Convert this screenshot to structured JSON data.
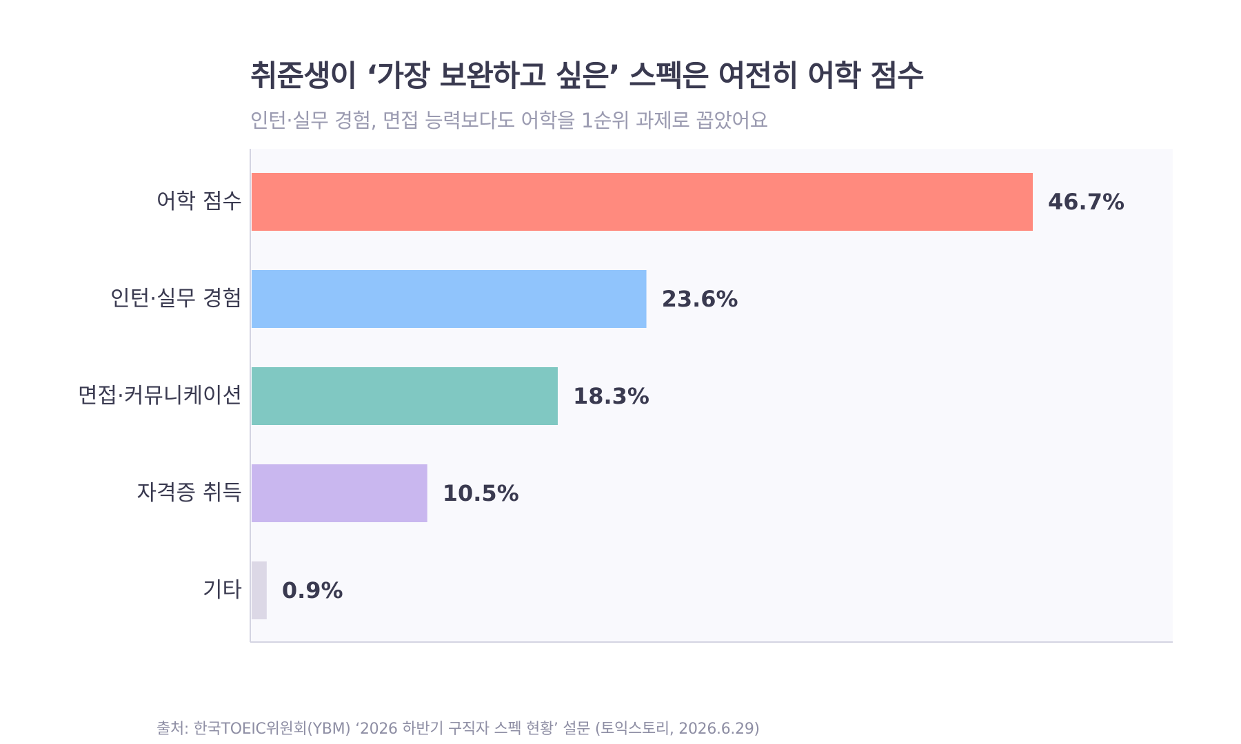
{
  "title": "취준생이 ‘가장 보완하고 싶은’ 스펙은 여전히 어학 점수",
  "subtitle": "인턴·실무 경험, 면접 능력보다도 어학을 1순위 과제로 꼽았어요",
  "source": "출처: 한국TOEIC위원회(YBM) ‘2026 하반기 구직자 스펙 현황’ 설문 (토익스토리, 2026.6.29)",
  "colors": {
    "plot_background": "#f9f9fd",
    "axis": "#d4d4e2",
    "label_text": "#3a3a50",
    "value_text": "#3a3a50"
  },
  "chart_data": {
    "type": "bar",
    "orientation": "horizontal",
    "categories": [
      "어학 점수",
      "인턴·실무 경험",
      "면접·커뮤니케이션",
      "자격증 취득",
      "기타"
    ],
    "values": [
      46.7,
      23.6,
      18.3,
      10.5,
      0.9
    ],
    "value_labels": [
      "46.7%",
      "23.6%",
      "18.3%",
      "10.5%",
      "0.9%"
    ],
    "bar_colors": [
      "#ff8a7e",
      "#90c4fc",
      "#80c8c2",
      "#c9b7ef",
      "#dcd8e6"
    ],
    "xlim": [
      0,
      55
    ],
    "grid": false,
    "legend": "none"
  }
}
